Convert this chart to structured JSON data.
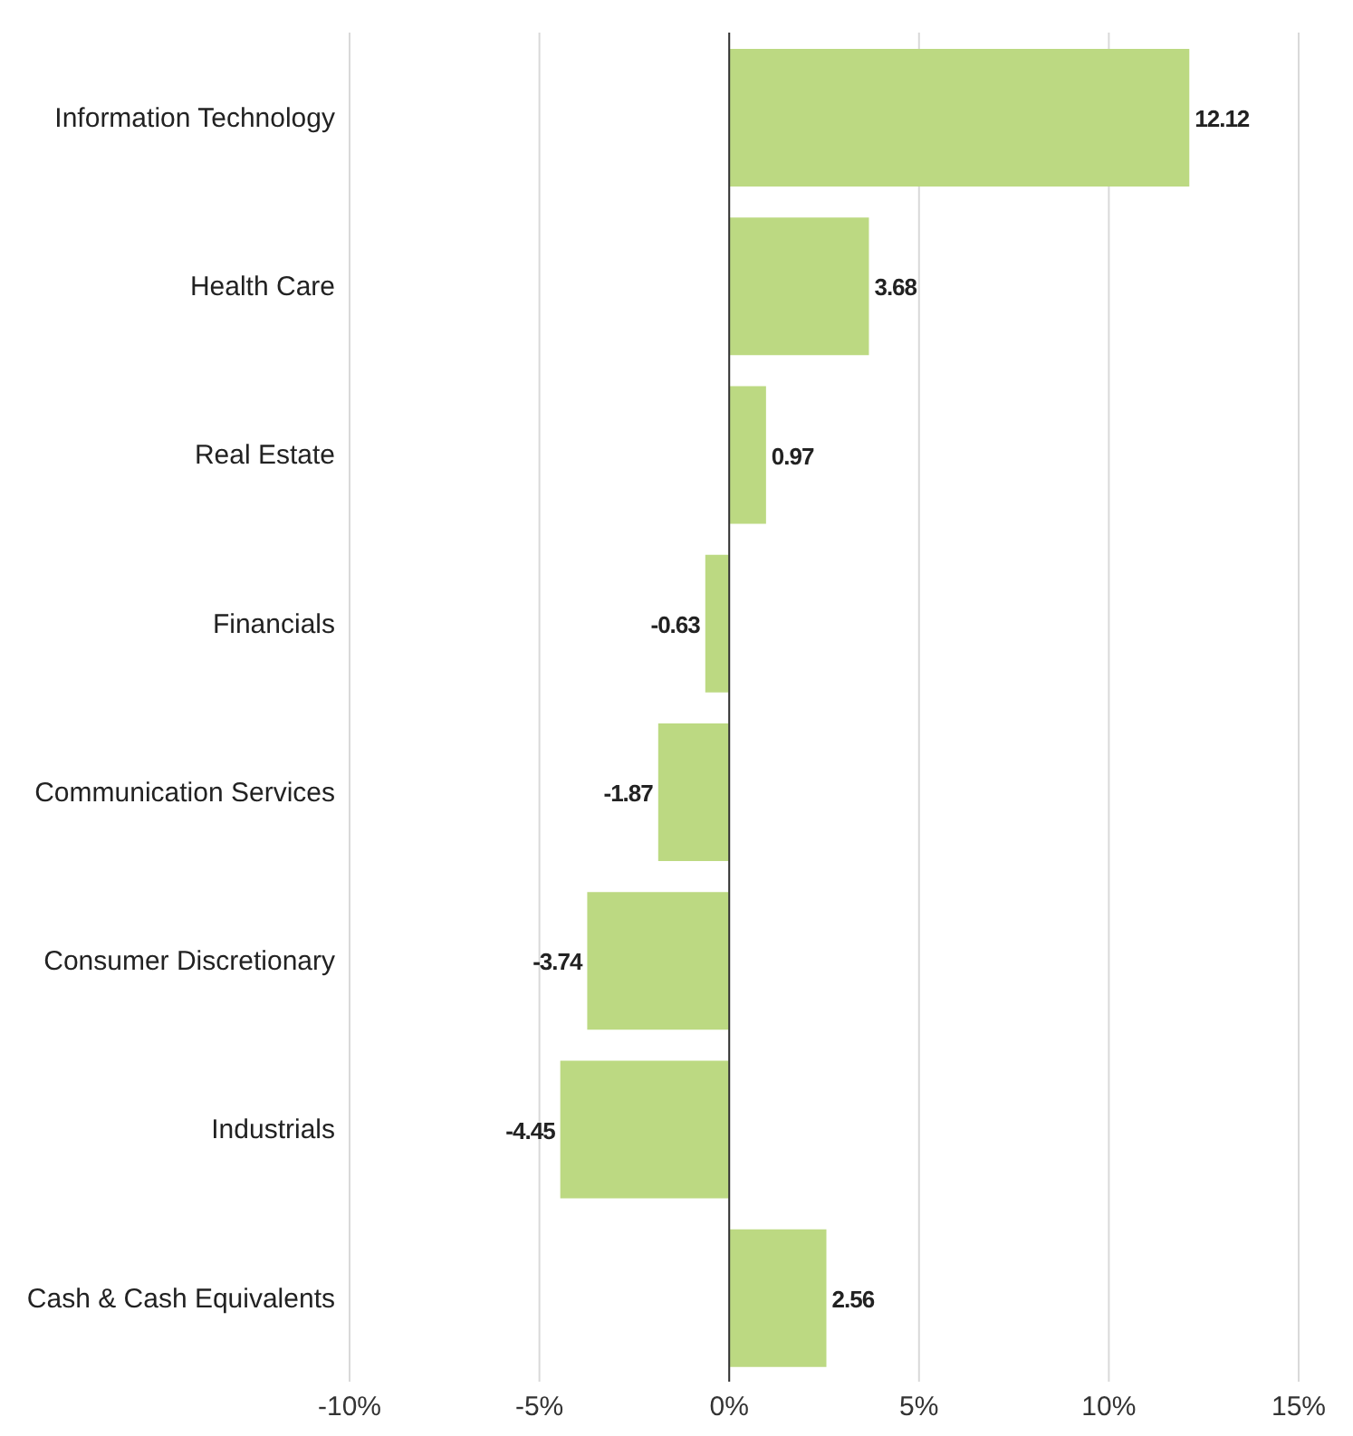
{
  "chart_data": {
    "type": "bar",
    "orientation": "horizontal",
    "categories": [
      "Information Technology",
      "Health Care",
      "Real Estate",
      "Financials",
      "Communication Services",
      "Consumer Discretionary",
      "Industrials",
      "Cash & Cash Equivalents"
    ],
    "values": [
      12.12,
      3.68,
      0.97,
      -0.63,
      -1.87,
      -3.74,
      -4.45,
      2.56
    ],
    "color": "#bcd982",
    "xlim": [
      -10,
      15
    ],
    "xticks": [
      {
        "value": -10,
        "label": "-10%"
      },
      {
        "value": -5,
        "label": "-5%"
      },
      {
        "value": 0,
        "label": "0%"
      },
      {
        "value": 5,
        "label": "5%"
      },
      {
        "value": 10,
        "label": "10%"
      },
      {
        "value": 15,
        "label": "15%"
      }
    ],
    "grid": "x",
    "data_labels": true,
    "legend": false
  }
}
